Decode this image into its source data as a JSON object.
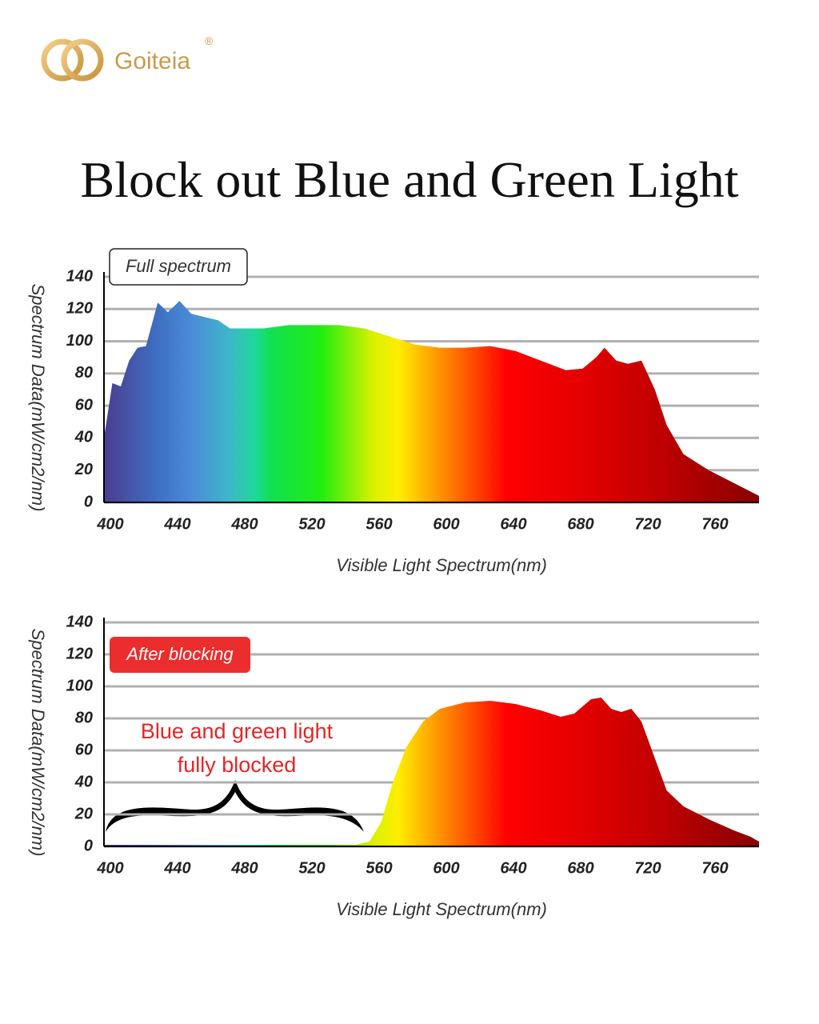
{
  "brand": {
    "name": "Goiteia",
    "mark": "®"
  },
  "title": "Block out Blue and Green Light",
  "chart_data": [
    {
      "type": "area",
      "label": "Full spectrum",
      "xlabel": "Visible Light Spectrum(nm)",
      "ylabel": "Spectrum Data(mW/cm2/nm)",
      "x": [
        400,
        405,
        410,
        415,
        420,
        425,
        432,
        438,
        445,
        452,
        460,
        468,
        475,
        485,
        495,
        510,
        525,
        540,
        555,
        570,
        585,
        600,
        615,
        630,
        645,
        660,
        675,
        685,
        693,
        698,
        705,
        712,
        720,
        728,
        735,
        745,
        760,
        775,
        790
      ],
      "values": [
        40,
        74,
        72,
        88,
        96,
        97,
        124,
        118,
        125,
        117,
        115,
        113,
        108,
        108,
        108,
        110,
        110,
        110,
        108,
        103,
        98,
        96,
        96,
        97,
        94,
        88,
        82,
        83,
        90,
        96,
        88,
        86,
        88,
        70,
        48,
        30,
        20,
        12,
        4
      ],
      "xlim": [
        400,
        790
      ],
      "xticks": [
        400,
        440,
        480,
        520,
        560,
        600,
        640,
        680,
        720,
        760
      ],
      "ylim": [
        0,
        140
      ],
      "yticks": [
        0,
        20,
        40,
        60,
        80,
        100,
        120,
        140
      ],
      "grid": true
    },
    {
      "type": "area",
      "label": "After blocking",
      "annotation": [
        "Blue and green light",
        "fully blocked"
      ],
      "xlabel": "Visible Light Spectrum(nm)",
      "ylabel": "Spectrum Data(mW/cm2/nm)",
      "x": [
        400,
        550,
        558,
        565,
        572,
        580,
        590,
        600,
        615,
        630,
        645,
        660,
        672,
        680,
        690,
        696,
        702,
        708,
        714,
        720,
        728,
        735,
        745,
        760,
        775,
        785,
        790
      ],
      "values": [
        1,
        1,
        3,
        15,
        40,
        62,
        78,
        86,
        90,
        91,
        89,
        85,
        81,
        83,
        92,
        93,
        86,
        84,
        86,
        78,
        55,
        35,
        25,
        17,
        10,
        6,
        3
      ],
      "xlim": [
        400,
        790
      ],
      "xticks": [
        400,
        440,
        480,
        520,
        560,
        600,
        640,
        680,
        720,
        760
      ],
      "ylim": [
        0,
        140
      ],
      "yticks": [
        0,
        20,
        40,
        60,
        80,
        100,
        120,
        140
      ],
      "grid": true
    }
  ]
}
